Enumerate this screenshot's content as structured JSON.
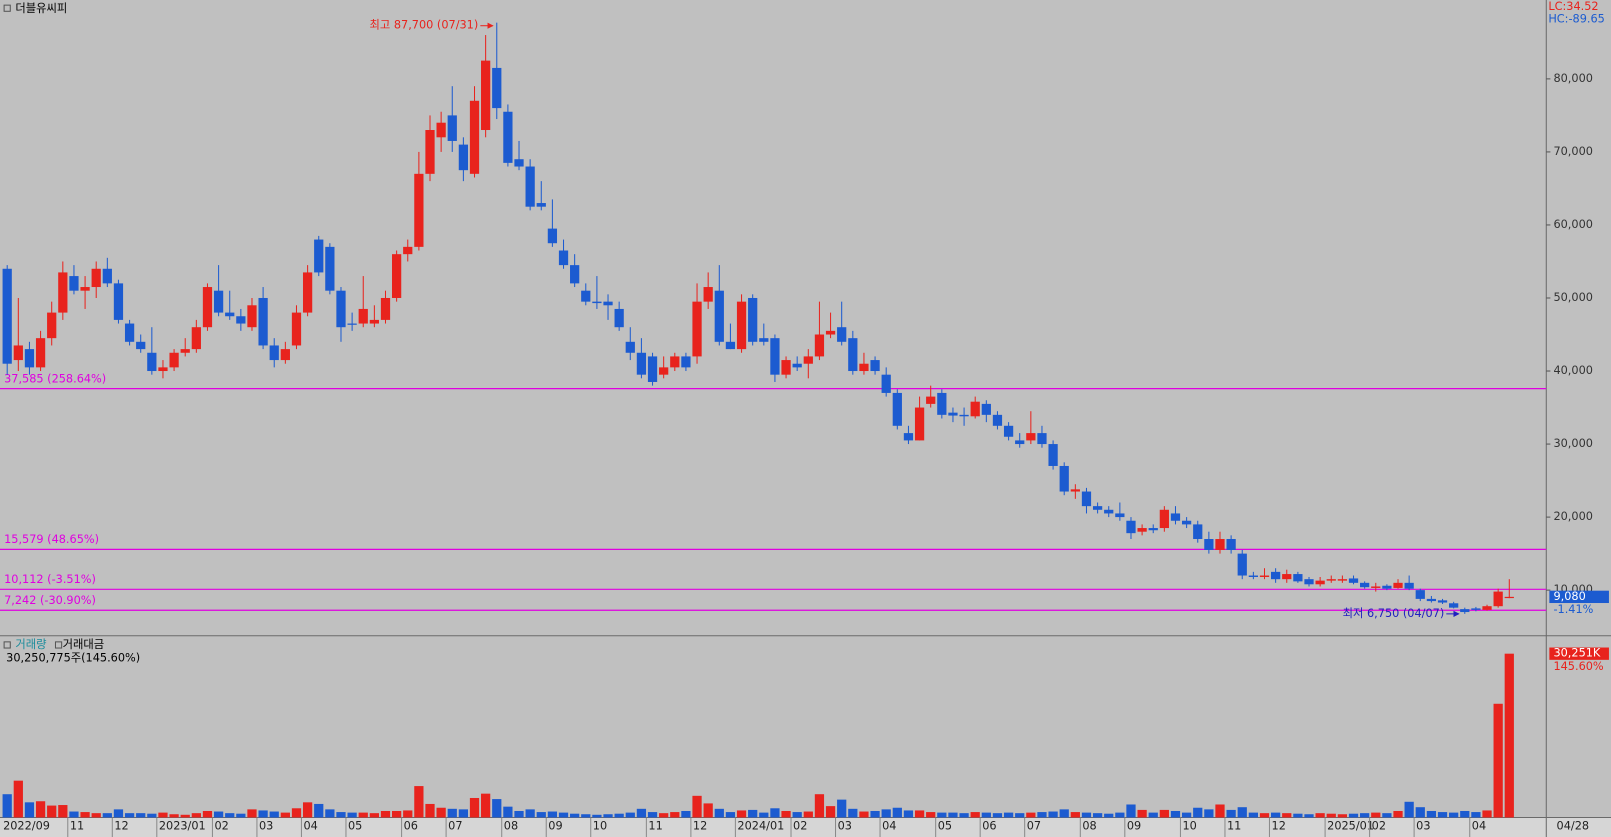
{
  "chart_data": {
    "type": "candlestick",
    "title": "더블유씨피",
    "lc": "LC:34.52",
    "hc": "HC:-89.65",
    "up_color": "#e8231d",
    "down_color": "#1c5bd0",
    "level_color": "#e000e0",
    "ylim": [
      3900,
      90800
    ],
    "yticks": [
      {
        "value": 10000,
        "label": "10,000"
      },
      {
        "value": 20000,
        "label": "20,000"
      },
      {
        "value": 30000,
        "label": "30,000"
      },
      {
        "value": 40000,
        "label": "40,000"
      },
      {
        "value": 50000,
        "label": "50,000"
      },
      {
        "value": 60000,
        "label": "60,000"
      },
      {
        "value": 70000,
        "label": "70,000"
      },
      {
        "value": 80000,
        "label": "80,000"
      }
    ],
    "volume_ylim": [
      0,
      33000000
    ],
    "categories": [
      "2022/09",
      null,
      null,
      null,
      null,
      null,
      "11",
      null,
      null,
      null,
      "12",
      null,
      null,
      null,
      "2023/01",
      null,
      null,
      null,
      null,
      "02",
      null,
      null,
      null,
      "03",
      null,
      null,
      null,
      "04",
      null,
      null,
      null,
      "05",
      null,
      null,
      null,
      null,
      "06",
      null,
      null,
      null,
      "07",
      null,
      null,
      null,
      null,
      "08",
      null,
      null,
      null,
      "09",
      null,
      null,
      null,
      "10",
      null,
      null,
      null,
      null,
      "11",
      null,
      null,
      null,
      "12",
      null,
      null,
      null,
      "2024/01",
      null,
      null,
      null,
      null,
      "02",
      null,
      null,
      null,
      "03",
      null,
      null,
      null,
      "04",
      null,
      null,
      null,
      null,
      "05",
      null,
      null,
      null,
      "06",
      null,
      null,
      null,
      "07",
      null,
      null,
      null,
      null,
      "08",
      null,
      null,
      null,
      "09",
      null,
      null,
      null,
      null,
      "10",
      null,
      null,
      null,
      "11",
      null,
      null,
      null,
      "12",
      null,
      null,
      null,
      null,
      "2025/01",
      null,
      null,
      null,
      "02",
      null,
      null,
      null,
      "03",
      null,
      null,
      null,
      null,
      "04",
      null,
      null,
      null
    ],
    "last_date": "04/28",
    "open": [
      54000,
      41500,
      43000,
      40500,
      44500,
      48000,
      53000,
      51000,
      51500,
      54000,
      52000,
      46500,
      44000,
      42500,
      40000,
      40500,
      42500,
      43000,
      46000,
      51000,
      48000,
      47500,
      46000,
      50000,
      43500,
      41500,
      43500,
      48000,
      58000,
      57000,
      51000,
      46500,
      46500,
      46500,
      47000,
      50000,
      56000,
      57000,
      67000,
      72000,
      75000,
      71000,
      67000,
      73000,
      81500,
      75500,
      69000,
      68000,
      63000,
      59500,
      56500,
      54500,
      51000,
      49500,
      49500,
      48500,
      44000,
      42500,
      42000,
      39500,
      40500,
      42000,
      42000,
      49500,
      51000,
      44000,
      43000,
      50000,
      44500,
      44500,
      39500,
      41000,
      41000,
      42000,
      45000,
      46000,
      44500,
      40000,
      41500,
      39500,
      37000,
      31500,
      30500,
      35500,
      37000,
      34300,
      34000,
      33800,
      35500,
      34000,
      32500,
      30500,
      30500,
      31500,
      30000,
      27000,
      23500,
      23500,
      21500,
      21000,
      20500,
      19500,
      18000,
      18500,
      18500,
      20500,
      19500,
      19000,
      17000,
      15500,
      17000,
      15000,
      12000,
      11800,
      12500,
      11500,
      12200,
      11500,
      10800,
      11300,
      11300,
      11600,
      11000,
      10300,
      10600,
      10300,
      11000,
      10000,
      8800,
      8600,
      8200,
      7400,
      7500,
      7300,
      7800,
      9000
    ],
    "high": [
      54500,
      50000,
      44000,
      45500,
      49500,
      55000,
      54500,
      53000,
      55000,
      55500,
      52500,
      47000,
      45000,
      46000,
      41500,
      43000,
      44500,
      47000,
      52000,
      54500,
      51000,
      48500,
      50000,
      51500,
      44500,
      44000,
      49000,
      54500,
      58500,
      57500,
      51500,
      48000,
      53000,
      49000,
      51000,
      56500,
      58000,
      70000,
      75000,
      75500,
      79000,
      72000,
      79000,
      86000,
      87700,
      76500,
      71500,
      69000,
      66000,
      63500,
      58000,
      56000,
      52000,
      53000,
      50500,
      49500,
      46000,
      44500,
      42500,
      42000,
      42500,
      42500,
      52000,
      53500,
      54500,
      46500,
      50500,
      50500,
      46500,
      45000,
      42000,
      42000,
      43000,
      49500,
      48000,
      49500,
      45500,
      42500,
      42000,
      40500,
      37500,
      32500,
      36500,
      38000,
      37500,
      35000,
      35000,
      36500,
      36000,
      34500,
      33000,
      31500,
      34500,
      32500,
      30500,
      27500,
      24500,
      24000,
      22000,
      21500,
      22000,
      20000,
      19000,
      19000,
      21500,
      21500,
      20000,
      19500,
      18000,
      18000,
      17500,
      15500,
      12500,
      13000,
      13000,
      12800,
      12500,
      11800,
      11800,
      12000,
      12000,
      12000,
      11200,
      11000,
      10800,
      11500,
      12000,
      10200,
      9200,
      8800,
      8400,
      7600,
      7700,
      8000,
      10200,
      11500
    ],
    "low": [
      39500,
      40000,
      39500,
      40000,
      43500,
      47000,
      50500,
      48500,
      50000,
      51500,
      46500,
      43500,
      42500,
      39500,
      39000,
      40000,
      42000,
      42500,
      45500,
      47500,
      47000,
      45500,
      45500,
      43000,
      40500,
      41000,
      43000,
      47500,
      53000,
      50500,
      44000,
      45500,
      46000,
      46000,
      46500,
      49500,
      55000,
      56500,
      66000,
      70000,
      70000,
      66000,
      66500,
      72000,
      74500,
      68000,
      67500,
      62000,
      62000,
      57000,
      54000,
      51500,
      49000,
      48500,
      47000,
      45500,
      41500,
      39000,
      38000,
      39000,
      40000,
      40000,
      41000,
      48500,
      43500,
      43000,
      42500,
      43500,
      43500,
      38500,
      39000,
      40000,
      39000,
      41500,
      44500,
      43500,
      39500,
      39500,
      39500,
      36500,
      32000,
      30000,
      30500,
      35000,
      33500,
      33000,
      32500,
      33500,
      33000,
      32000,
      30500,
      29500,
      30000,
      29500,
      26500,
      23000,
      22500,
      20500,
      20500,
      20000,
      19500,
      17000,
      17500,
      17800,
      18000,
      19000,
      18500,
      16500,
      15000,
      15000,
      15000,
      11500,
      11500,
      11500,
      11000,
      11000,
      11000,
      10500,
      10500,
      11000,
      11000,
      10800,
      10200,
      9800,
      10000,
      10200,
      10000,
      8500,
      8300,
      8100,
      7500,
      6750,
      7100,
      7200,
      7600,
      8900
    ],
    "close": [
      41000,
      43500,
      40500,
      44500,
      48000,
      53500,
      51000,
      51500,
      54000,
      52000,
      47000,
      44000,
      43000,
      40000,
      40500,
      42500,
      43000,
      46000,
      51500,
      48000,
      47500,
      46500,
      49000,
      43500,
      41500,
      43000,
      48000,
      53500,
      53500,
      51000,
      46000,
      46400,
      48500,
      47000,
      50000,
      56000,
      57000,
      67000,
      73000,
      74000,
      71500,
      67500,
      77000,
      82500,
      76000,
      68500,
      68000,
      62500,
      62500,
      57500,
      54500,
      52000,
      49500,
      49300,
      49000,
      46000,
      42500,
      39500,
      38500,
      40500,
      42000,
      40500,
      49500,
      51500,
      44000,
      43000,
      49500,
      44000,
      44000,
      39500,
      41500,
      40500,
      42000,
      45000,
      45500,
      44000,
      40000,
      41000,
      40000,
      37000,
      32500,
      30500,
      35000,
      36500,
      34000,
      33900,
      33800,
      35800,
      34000,
      32500,
      31000,
      30000,
      31500,
      30000,
      27000,
      23500,
      23800,
      21500,
      21000,
      20500,
      20000,
      17800,
      18500,
      18200,
      21000,
      19500,
      19000,
      17000,
      15500,
      17000,
      15500,
      12000,
      11800,
      12000,
      11500,
      12200,
      11200,
      10800,
      11300,
      11500,
      11500,
      11000,
      10400,
      10500,
      10200,
      11000,
      10200,
      8800,
      8500,
      8300,
      7600,
      7000,
      7300,
      7800,
      9800,
      9080
    ],
    "volume": [
      4300000,
      6800000,
      2800000,
      3000000,
      2200000,
      2300000,
      1100000,
      1000000,
      800000,
      800000,
      1500000,
      800000,
      800000,
      700000,
      900000,
      600000,
      500000,
      800000,
      1200000,
      1100000,
      800000,
      700000,
      1500000,
      1300000,
      1100000,
      900000,
      1700000,
      2800000,
      2500000,
      1500000,
      1000000,
      900000,
      900000,
      800000,
      1200000,
      1200000,
      1300000,
      5800000,
      2500000,
      1800000,
      1600000,
      1500000,
      3600000,
      4400000,
      3400000,
      2000000,
      1200000,
      1500000,
      1000000,
      1100000,
      900000,
      700000,
      600000,
      500000,
      600000,
      700000,
      900000,
      1600000,
      1000000,
      800000,
      1000000,
      1200000,
      4000000,
      2600000,
      1600000,
      1000000,
      1300000,
      1400000,
      900000,
      1700000,
      1200000,
      1000000,
      1100000,
      4300000,
      2100000,
      3300000,
      1600000,
      1100000,
      1200000,
      1500000,
      1800000,
      1300000,
      1300000,
      1000000,
      900000,
      900000,
      800000,
      1000000,
      900000,
      800000,
      900000,
      800000,
      900000,
      1000000,
      1100000,
      1500000,
      1000000,
      900000,
      800000,
      700000,
      900000,
      2400000,
      1400000,
      900000,
      1400000,
      1200000,
      900000,
      1800000,
      1500000,
      2400000,
      1400000,
      1900000,
      900000,
      800000,
      900000,
      800000,
      700000,
      600000,
      800000,
      700000,
      600000,
      700000,
      800000,
      900000,
      800000,
      1200000,
      2900000,
      1900000,
      1200000,
      1000000,
      900000,
      1200000,
      1000000,
      1300000,
      21000000,
      30250775
    ],
    "levels": [
      {
        "value": 37585,
        "label": "37,585 (258.64%)"
      },
      {
        "value": 15579,
        "label": "15,579 (48.65%)"
      },
      {
        "value": 10112,
        "label": "10,112 (-3.51%)"
      },
      {
        "value": 7242,
        "label": "7,242 (-30.90%)"
      }
    ],
    "high_note": {
      "value": 87700,
      "label": "최고 87,700 (07/31)"
    },
    "low_note": {
      "value": 6750,
      "label": "최저 6,750 (04/07)"
    },
    "last_price": {
      "label": "9,080",
      "change": "-1.41%"
    },
    "volume_title": "거래량",
    "amount_title": "거래대금",
    "volume_info": "30,250,775주(145.60%)",
    "last_volume": {
      "label": "30,251K",
      "change": "145.60%"
    }
  }
}
